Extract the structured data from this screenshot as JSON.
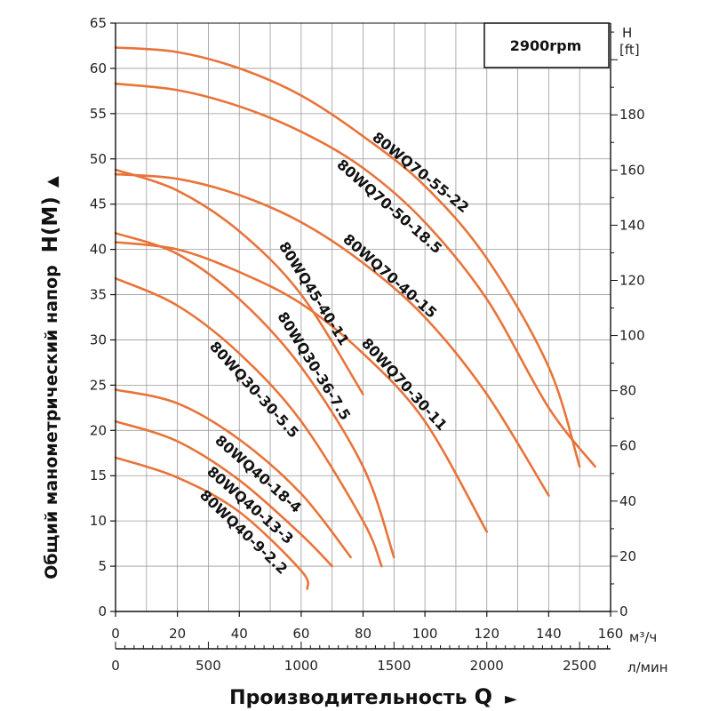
{
  "chart_data": {
    "type": "line",
    "speed_label": "2900rpm",
    "ylabel_text": "Общий манометрический напор",
    "ylabel_symbol": "H(M)",
    "ylabel_arrow": "▲",
    "xlabel_text": "Производительность",
    "xlabel_symbol": "Q",
    "xlabel_arrow": "►",
    "right_axis_label_line1": "H",
    "right_axis_label_line2": "[ft]",
    "x_unit_primary": "м³/ч",
    "x_unit_secondary": "л/мин",
    "xlim": [
      0,
      160
    ],
    "ylim": [
      0,
      65
    ],
    "grid": true,
    "x_ticks": [
      "0",
      "20",
      "40",
      "60",
      "80",
      "100",
      "120",
      "140",
      "160"
    ],
    "y_ticks": [
      "0",
      "5",
      "10",
      "15",
      "20",
      "25",
      "30",
      "35",
      "40",
      "45",
      "50",
      "55",
      "60",
      "65"
    ],
    "x2_ticks": [
      "0",
      "500",
      "1000",
      "1500",
      "2000",
      "2500"
    ],
    "y2_ticks": [
      "0",
      "20",
      "40",
      "60",
      "80",
      "100",
      "120",
      "140",
      "160",
      "180"
    ],
    "series": [
      {
        "name": "80WQ70-55-22",
        "x": [
          0,
          20,
          40,
          60,
          80,
          100,
          120,
          140,
          150
        ],
        "y": [
          62.3,
          61.8,
          60,
          57,
          52.5,
          47,
          39,
          27,
          16
        ]
      },
      {
        "name": "80WQ70-50-18.5",
        "x": [
          0,
          20,
          40,
          60,
          80,
          100,
          120,
          140,
          155
        ],
        "y": [
          58.3,
          57.6,
          55.8,
          53,
          49,
          43,
          34.5,
          22.5,
          16
        ]
      },
      {
        "name": "80WQ70-40-15",
        "x": [
          0,
          20,
          40,
          60,
          80,
          100,
          120,
          140
        ],
        "y": [
          48.3,
          47.8,
          46,
          43,
          38.5,
          32.5,
          24,
          12.8
        ]
      },
      {
        "name": "80WQ70-30-11",
        "x": [
          0,
          20,
          40,
          60,
          80,
          100,
          120
        ],
        "y": [
          40.8,
          40,
          37.5,
          34,
          28.5,
          21,
          8.8
        ]
      },
      {
        "name": "80WQ45-40-11",
        "x": [
          0,
          20,
          40,
          60,
          80
        ],
        "y": [
          48.8,
          46.5,
          42,
          35,
          24
        ]
      },
      {
        "name": "80WQ30-36-7.5",
        "x": [
          0,
          20,
          40,
          60,
          80,
          90
        ],
        "y": [
          41.8,
          39.5,
          34.5,
          27,
          16,
          6
        ]
      },
      {
        "name": "80WQ30-30-5.5",
        "x": [
          0,
          20,
          40,
          60,
          80,
          86
        ],
        "y": [
          36.8,
          33.8,
          28.5,
          21,
          10,
          5
        ]
      },
      {
        "name": "80WQ40-18-4",
        "x": [
          0,
          20,
          40,
          60,
          76
        ],
        "y": [
          24.5,
          23,
          19,
          13,
          6
        ]
      },
      {
        "name": "80WQ40-13-3",
        "x": [
          0,
          20,
          40,
          60,
          70
        ],
        "y": [
          21,
          18.8,
          14.5,
          8.5,
          5
        ]
      },
      {
        "name": "80WQ40-9-2.2",
        "x": [
          0,
          20,
          40,
          60,
          62
        ],
        "y": [
          17,
          14.8,
          11,
          4.5,
          2.5
        ]
      }
    ],
    "colors": {
      "curve": "#e8743a",
      "grid": "#9a9a9a",
      "axis": "#111111"
    }
  }
}
